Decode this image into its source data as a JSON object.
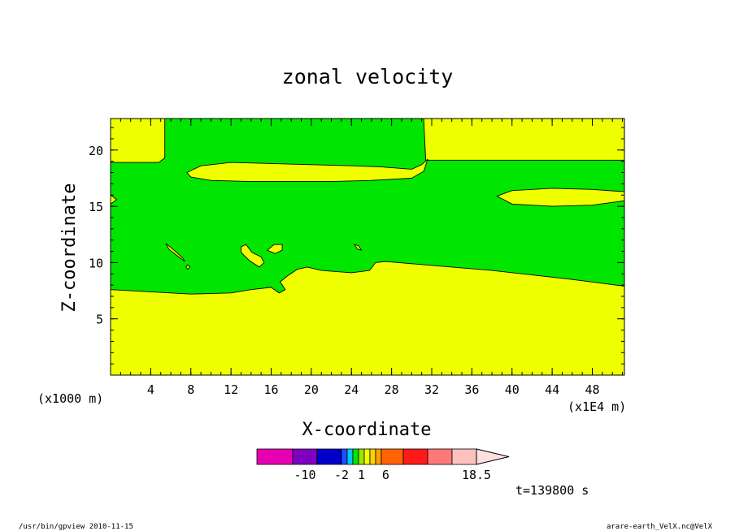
{
  "chart_data": {
    "type": "heatmap",
    "title": "zonal velocity",
    "xlabel": "X-coordinate",
    "ylabel": "Z-coordinate",
    "x_unit_left": "(x1000 m)",
    "x_unit_right": "(x1E4 m)",
    "xlim": [
      0,
      51.2
    ],
    "ylim": [
      0,
      22.8
    ],
    "x_ticks": [
      "4",
      "8",
      "12",
      "16",
      "20",
      "24",
      "28",
      "32",
      "36",
      "40",
      "44",
      "48"
    ],
    "y_ticks": [
      "5",
      "10",
      "15",
      "20"
    ],
    "x_tick_values": [
      4,
      8,
      12,
      16,
      20,
      24,
      28,
      32,
      36,
      40,
      44,
      48
    ],
    "y_tick_values": [
      5,
      10,
      15,
      20
    ],
    "colors": {
      "background_band": "#f0ff00",
      "main_band": "#00e600"
    },
    "regions": [
      {
        "color": "#00e600",
        "polygon": [
          [
            0,
            7.6
          ],
          [
            4,
            7.4
          ],
          [
            8,
            7.2
          ],
          [
            12,
            7.3
          ],
          [
            14,
            7.6
          ],
          [
            16,
            7.8
          ],
          [
            16.8,
            7.3
          ],
          [
            17.4,
            7.6
          ],
          [
            16.9,
            8.3
          ],
          [
            17.6,
            8.8
          ],
          [
            18.6,
            9.4
          ],
          [
            19.6,
            9.6
          ],
          [
            21,
            9.3
          ],
          [
            24,
            9.1
          ],
          [
            25.8,
            9.3
          ],
          [
            26.4,
            10
          ],
          [
            27.4,
            10.1
          ],
          [
            30,
            9.9
          ],
          [
            34,
            9.6
          ],
          [
            38,
            9.3
          ],
          [
            42,
            8.9
          ],
          [
            46,
            8.5
          ],
          [
            51.2,
            7.9
          ],
          [
            51.2,
            19.1
          ],
          [
            31.4,
            19.1
          ],
          [
            31.2,
            22.8
          ],
          [
            5.4,
            22.8
          ],
          [
            5.4,
            19.3
          ],
          [
            4.8,
            18.9
          ],
          [
            0,
            18.9
          ]
        ]
      },
      {
        "color": "#f0ff00",
        "polygon": [
          [
            7.6,
            18.0
          ],
          [
            9,
            18.6
          ],
          [
            12,
            18.9
          ],
          [
            16,
            18.8
          ],
          [
            20,
            18.7
          ],
          [
            24,
            18.6
          ],
          [
            27,
            18.5
          ],
          [
            30,
            18.3
          ],
          [
            31,
            18.7
          ],
          [
            31.6,
            19.2
          ],
          [
            31.2,
            18.1
          ],
          [
            30,
            17.5
          ],
          [
            26,
            17.3
          ],
          [
            22,
            17.2
          ],
          [
            18,
            17.2
          ],
          [
            14,
            17.2
          ],
          [
            10,
            17.3
          ],
          [
            8,
            17.6
          ]
        ]
      },
      {
        "color": "#f0ff00",
        "polygon": [
          [
            38.5,
            15.9
          ],
          [
            40,
            16.4
          ],
          [
            44,
            16.6
          ],
          [
            48,
            16.5
          ],
          [
            51.2,
            16.3
          ],
          [
            51.2,
            15.5
          ],
          [
            48,
            15.1
          ],
          [
            44,
            15.0
          ],
          [
            40,
            15.2
          ]
        ]
      },
      {
        "color": "#f0ff00",
        "polygon": [
          [
            0,
            16.0
          ],
          [
            0.6,
            15.6
          ],
          [
            0,
            15.2
          ]
        ]
      },
      {
        "color": "#f0ff00",
        "polygon": [
          [
            5.5,
            11.7
          ],
          [
            6.2,
            11.2
          ],
          [
            7.2,
            10.4
          ],
          [
            7.4,
            10.1
          ],
          [
            6.8,
            10.5
          ],
          [
            5.8,
            11.2
          ]
        ]
      },
      {
        "color": "#f0ff00",
        "polygon": [
          [
            7.7,
            9.8
          ],
          [
            7.9,
            9.6
          ],
          [
            7.7,
            9.4
          ],
          [
            7.5,
            9.6
          ]
        ]
      },
      {
        "color": "#f0ff00",
        "polygon": [
          [
            13.0,
            11.4
          ],
          [
            13.5,
            11.6
          ],
          [
            14.1,
            10.9
          ],
          [
            15.0,
            10.5
          ],
          [
            15.3,
            10.0
          ],
          [
            14.8,
            9.6
          ],
          [
            13.8,
            10.2
          ],
          [
            13.0,
            10.9
          ]
        ]
      },
      {
        "color": "#f0ff00",
        "polygon": [
          [
            15.6,
            11.1
          ],
          [
            16.3,
            11.6
          ],
          [
            17.1,
            11.6
          ],
          [
            17.1,
            11.1
          ],
          [
            16.4,
            10.8
          ]
        ]
      },
      {
        "color": "#f0ff00",
        "polygon": [
          [
            24.3,
            11.6
          ],
          [
            24.7,
            11.5
          ],
          [
            25,
            11.1
          ],
          [
            24.6,
            11.2
          ]
        ]
      }
    ],
    "colorbar": {
      "colors": [
        "#e600b3",
        "#8000c0",
        "#0000c8",
        "#1e50ff",
        "#00c8ff",
        "#00e600",
        "#9ee600",
        "#f0ff00",
        "#ffd200",
        "#ffa000",
        "#ff6400",
        "#ff1a1a",
        "#ff7878",
        "#ffc0c0",
        "#ffe0e0"
      ],
      "widths": [
        44,
        30,
        30,
        7,
        7,
        7,
        7,
        7,
        7,
        7,
        27,
        30,
        30,
        30,
        40
      ],
      "labels": [
        {
          "text": "-10",
          "value_pos": 1.5
        },
        {
          "text": "-2",
          "value_pos": 3
        },
        {
          "text": "1",
          "value_pos": 6.5
        },
        {
          "text": "6",
          "value_pos": 10.2
        },
        {
          "text": "18.5",
          "value_pos": 14
        }
      ]
    },
    "time_label": "t=139800 s"
  },
  "footer": {
    "left": "/usr/bin/gpview  2010-11-15",
    "right": "arare-earth_VelX.nc@VelX"
  }
}
